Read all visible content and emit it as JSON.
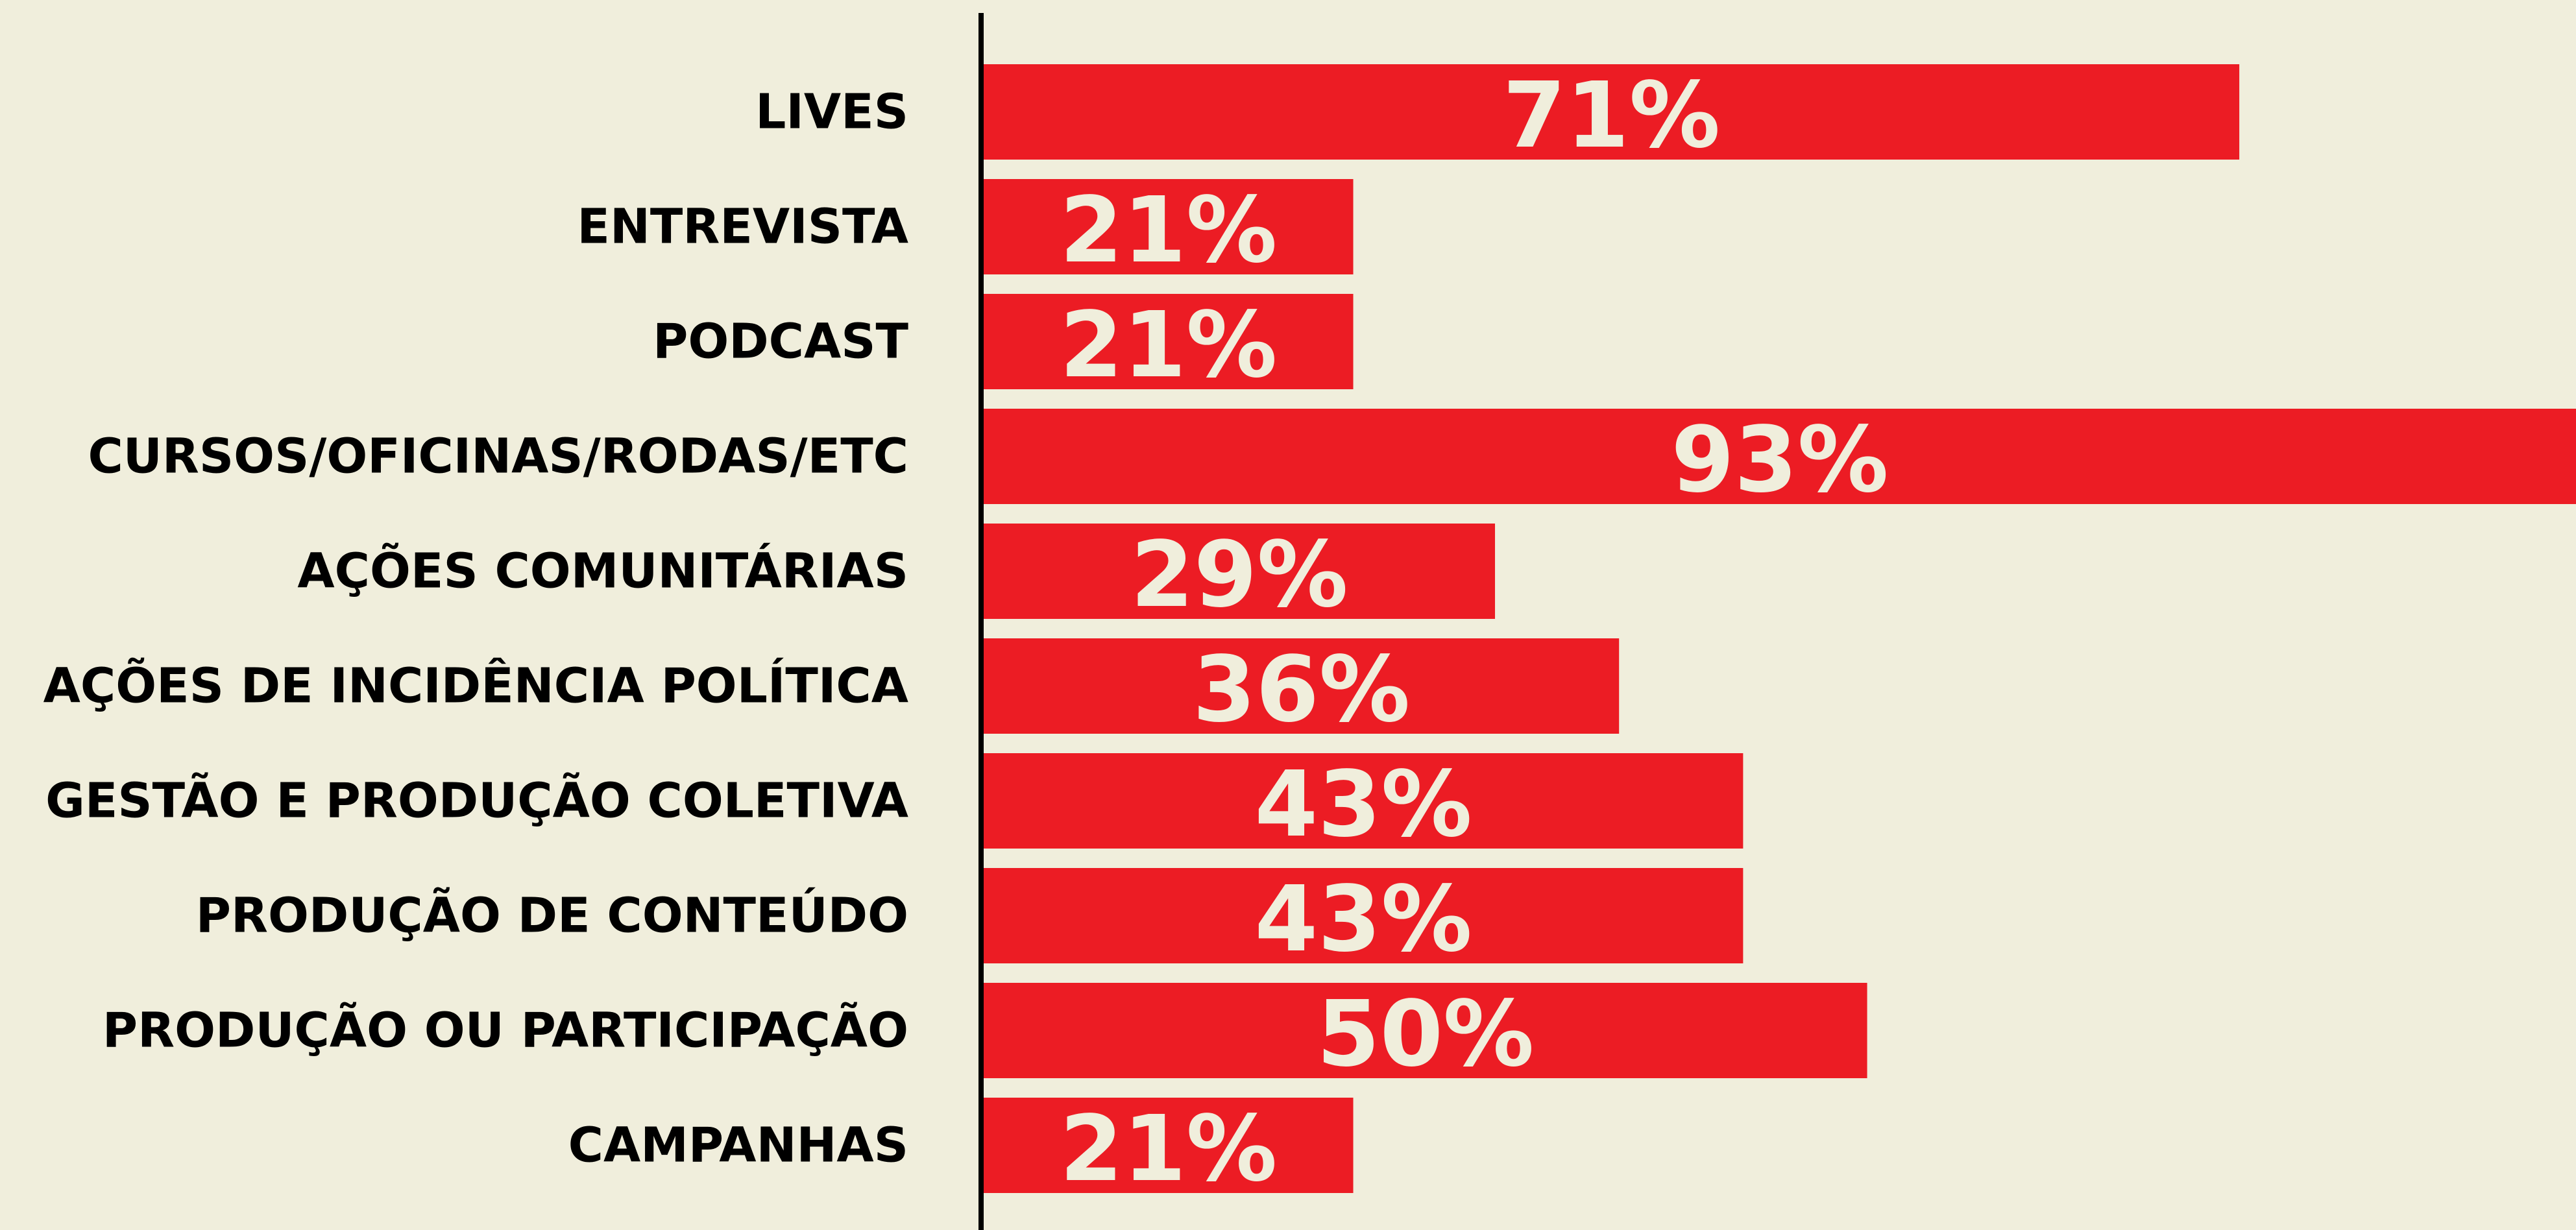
{
  "chart_data": {
    "type": "bar",
    "orientation": "horizontal",
    "categories": [
      "LIVES",
      "ENTREVISTA",
      "PODCAST",
      "CURSOS/OFICINAS/RODAS/ETC",
      "AÇÕES COMUNITÁRIAS",
      "AÇÕES DE INCIDÊNCIA POLÍTICA",
      "GESTÃO E PRODUÇÃO COLETIVA",
      "PRODUÇÃO DE CONTEÚDO",
      "PRODUÇÃO OU PARTICIPAÇÃO",
      "CAMPANHAS"
    ],
    "values": [
      71,
      21,
      21,
      93,
      29,
      36,
      43,
      43,
      50,
      21
    ],
    "value_labels": [
      "71%",
      "21%",
      "21%",
      "93%",
      "29%",
      "36%",
      "43%",
      "43%",
      "50%",
      "21%"
    ],
    "color": "#ec1c24",
    "xlim": [
      0,
      90
    ]
  }
}
